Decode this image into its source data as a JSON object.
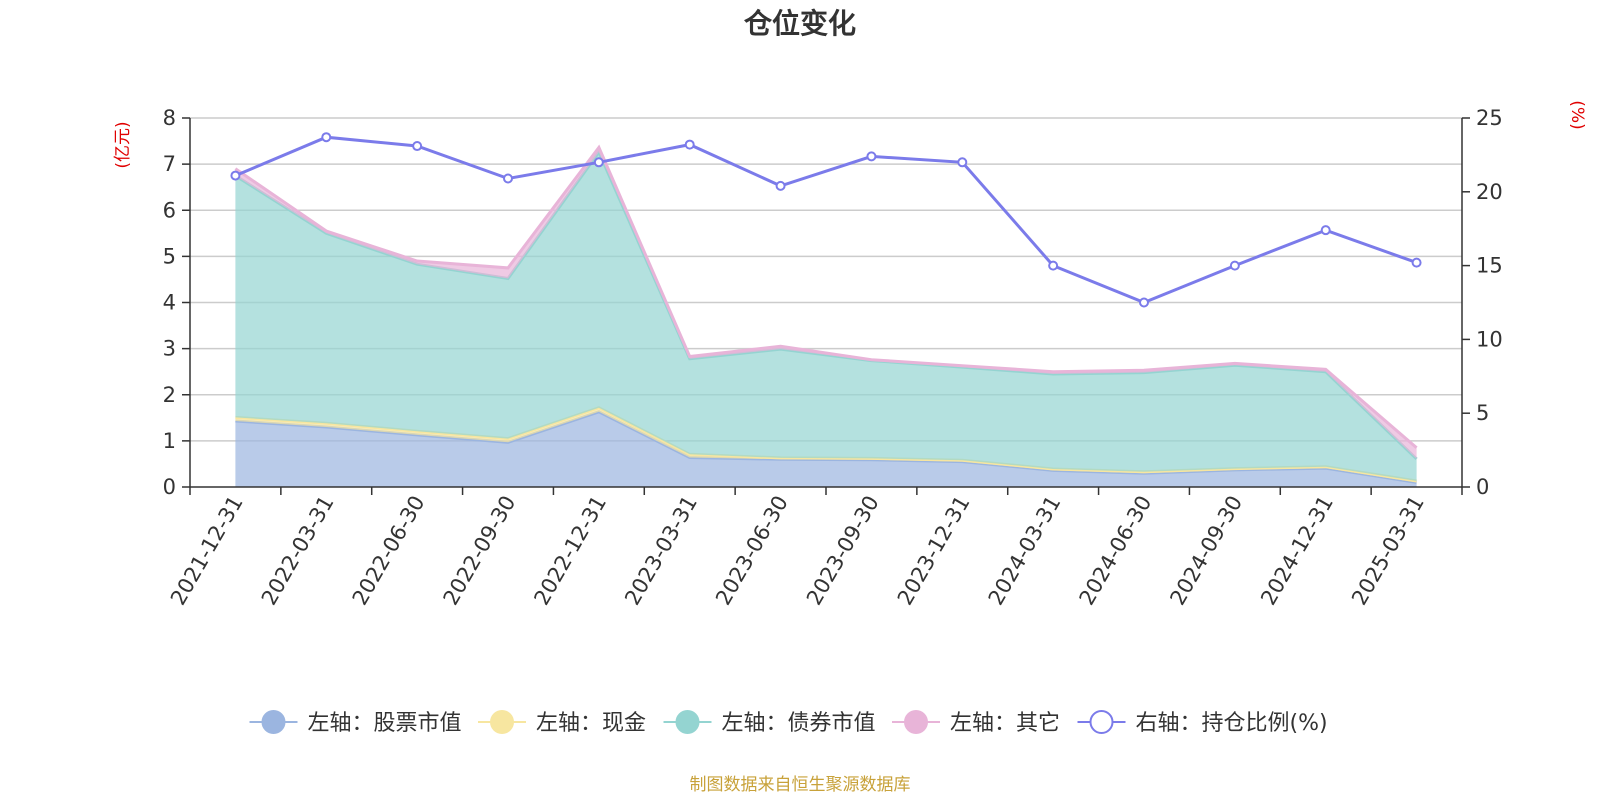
{
  "chart_data": {
    "type": "area",
    "title": "仓位变化",
    "left_axis_unit": "(亿元)",
    "right_axis_unit": "(%)",
    "categories": [
      "2021-12-31",
      "2022-03-31",
      "2022-06-30",
      "2022-09-30",
      "2022-12-31",
      "2023-03-31",
      "2023-06-30",
      "2023-09-30",
      "2023-12-31",
      "2024-03-31",
      "2024-06-30",
      "2024-09-30",
      "2024-12-31",
      "2025-03-31"
    ],
    "left_ylim": [
      0,
      8
    ],
    "left_yticks": [
      0,
      1,
      2,
      3,
      4,
      5,
      6,
      7,
      8
    ],
    "right_ylim": [
      0,
      25
    ],
    "right_yticks": [
      0,
      5,
      10,
      15,
      20,
      25
    ],
    "grid": true,
    "legend_position": "bottom",
    "stacked": true,
    "series": [
      {
        "name": "左轴：股票市值",
        "axis": "left",
        "color": "#9bb5e0",
        "values": [
          1.43,
          1.3,
          1.13,
          0.97,
          1.63,
          0.64,
          0.6,
          0.59,
          0.55,
          0.36,
          0.3,
          0.37,
          0.41,
          0.1
        ]
      },
      {
        "name": "左轴：现金",
        "axis": "left",
        "color": "#f7e6a0",
        "values": [
          0.08,
          0.08,
          0.08,
          0.08,
          0.09,
          0.07,
          0.03,
          0.03,
          0.03,
          0.03,
          0.03,
          0.03,
          0.03,
          0.03
        ]
      },
      {
        "name": "左轴：债券市值",
        "axis": "left",
        "color": "#94d4d1",
        "values": [
          5.24,
          4.12,
          3.62,
          3.47,
          5.54,
          2.07,
          2.36,
          2.12,
          2.02,
          2.06,
          2.15,
          2.24,
          2.06,
          0.48
        ]
      },
      {
        "name": "左轴：其它",
        "axis": "left",
        "color": "#e8b4d8",
        "values": [
          0.15,
          0.05,
          0.07,
          0.23,
          0.1,
          0.05,
          0.06,
          0.02,
          0.03,
          0.05,
          0.05,
          0.04,
          0.05,
          0.24
        ]
      },
      {
        "name": "右轴：持仓比例(%)",
        "axis": "right",
        "color": "#7b7bea",
        "values": [
          21.1,
          23.7,
          23.1,
          20.9,
          22.0,
          23.2,
          20.4,
          22.4,
          22.0,
          15.0,
          12.5,
          15.0,
          17.4,
          15.2
        ]
      }
    ]
  },
  "source_note": "制图数据来自恒生聚源数据库"
}
